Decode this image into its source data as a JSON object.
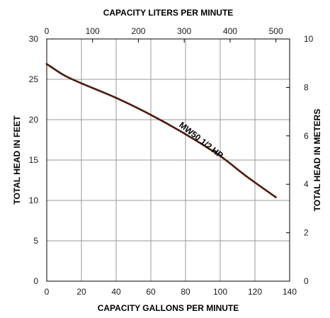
{
  "chart_data": {
    "type": "line",
    "x_bottom": {
      "label": "CAPACITY GALLONS PER MINUTE",
      "range": [
        0,
        140
      ],
      "ticks": [
        0,
        20,
        40,
        60,
        80,
        100,
        120,
        140
      ]
    },
    "x_top": {
      "label": "CAPACITY LITERS PER MINUTE",
      "range_gpm": [
        0,
        140
      ],
      "liters_per_gallon": 3.785,
      "ticks": [
        0,
        100,
        200,
        300,
        400,
        500
      ]
    },
    "y_left": {
      "label": "TOTAL HEAD IN FEET",
      "range": [
        0,
        30
      ],
      "ticks": [
        0,
        5,
        10,
        15,
        20,
        25,
        30
      ]
    },
    "y_right": {
      "label": "TOTAL HEAD IN METERS",
      "range": [
        0,
        10
      ],
      "ticks": [
        0,
        2,
        4,
        6,
        8,
        10
      ]
    },
    "series": [
      {
        "name": "MW50 1/2 HP",
        "color": "#4a1a0e",
        "x": [
          0,
          10,
          20,
          40,
          60,
          80,
          100,
          115,
          132
        ],
        "y": [
          26.9,
          25.5,
          24.5,
          22.7,
          20.6,
          18.2,
          15.5,
          13.0,
          10.4
        ]
      }
    ],
    "annotations": [
      {
        "text": "MW50 1/2 HP",
        "x": 88,
        "y": 17.2,
        "rotation_deg": 38
      }
    ],
    "grid": true,
    "legend": "none"
  }
}
